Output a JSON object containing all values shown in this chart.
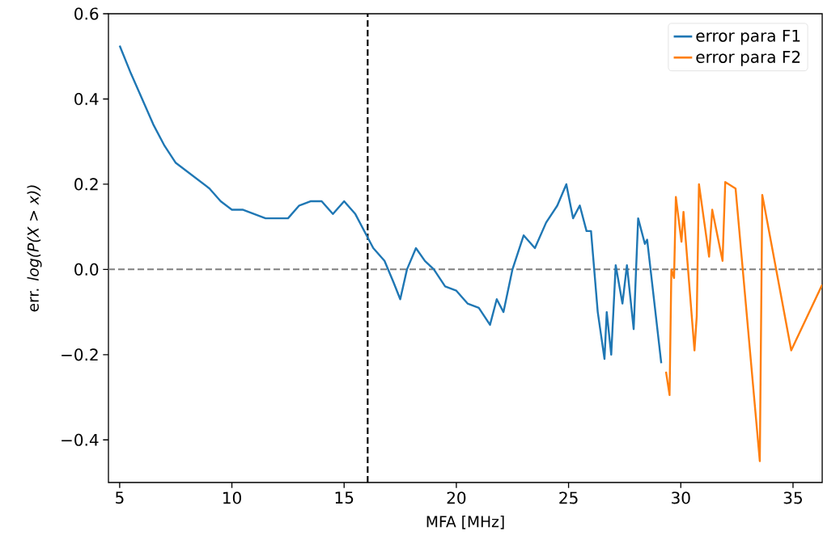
{
  "chart_data": {
    "type": "line",
    "xlabel": "MFA [MHz]",
    "ylabel": "err. *log(P(X > x))*",
    "xlim": [
      4.5,
      36.3
    ],
    "ylim": [
      -0.5,
      0.6
    ],
    "xticks": [
      5,
      10,
      15,
      20,
      25,
      30,
      35
    ],
    "yticks": [
      {
        "value": -0.4,
        "label": "−0.4"
      },
      {
        "value": -0.2,
        "label": "−0.2"
      },
      {
        "value": 0,
        "label": "0.0"
      },
      {
        "value": 0.2,
        "label": "0.2"
      },
      {
        "value": 0.4,
        "label": "0.4"
      },
      {
        "value": 0.6,
        "label": "0.6"
      }
    ],
    "legend": "top right",
    "grid": false,
    "ref_lines": [
      {
        "axis": "y",
        "value": 0,
        "color": "#808080",
        "line_style": "dashed"
      },
      {
        "axis": "x",
        "value": 16.05,
        "color": "#000000",
        "line_style": "dashed"
      }
    ],
    "series": [
      {
        "name": "error para F1",
        "color": "#1f77b4",
        "x": [
          5.0,
          5.5,
          6.0,
          6.5,
          7.0,
          7.5,
          8.0,
          8.5,
          9.0,
          9.5,
          10.0,
          10.5,
          11.0,
          11.5,
          12.0,
          12.5,
          13.0,
          13.5,
          14.0,
          14.5,
          15.0,
          15.5,
          16.0,
          16.3,
          16.8,
          17.2,
          17.5,
          17.8,
          18.2,
          18.6,
          19.0,
          19.5,
          20.0,
          20.5,
          21.0,
          21.5,
          21.8,
          22.1,
          22.5,
          23.0,
          23.5,
          24.0,
          24.5,
          24.9,
          25.2,
          25.5,
          25.8,
          26.0,
          26.3,
          26.6,
          26.7,
          26.9,
          27.1,
          27.4,
          27.6,
          27.9,
          28.1,
          28.4,
          28.5,
          29.13
        ],
        "values": [
          0.525,
          0.46,
          0.4,
          0.34,
          0.29,
          0.25,
          0.23,
          0.21,
          0.19,
          0.16,
          0.14,
          0.14,
          0.13,
          0.12,
          0.12,
          0.12,
          0.15,
          0.16,
          0.16,
          0.13,
          0.16,
          0.13,
          0.08,
          0.05,
          0.02,
          -0.03,
          -0.07,
          0.0,
          0.05,
          0.02,
          0.0,
          -0.04,
          -0.05,
          -0.08,
          -0.09,
          -0.13,
          -0.07,
          -0.1,
          0.0,
          0.08,
          0.05,
          0.11,
          0.15,
          0.2,
          0.12,
          0.15,
          0.09,
          0.09,
          -0.1,
          -0.21,
          -0.1,
          -0.2,
          0.01,
          -0.08,
          0.01,
          -0.14,
          0.12,
          0.06,
          0.07,
          -0.22
        ]
      },
      {
        "name": "error para F2",
        "color": "#ff7f0e",
        "x": [
          29.34,
          29.5,
          29.58,
          29.7,
          29.78,
          30.03,
          30.12,
          30.61,
          30.71,
          30.81,
          31.26,
          31.4,
          31.86,
          31.98,
          32.44,
          33.52,
          33.63,
          34.92,
          36.3
        ],
        "values": [
          -0.24,
          -0.295,
          0.0,
          -0.02,
          0.17,
          0.065,
          0.135,
          -0.19,
          -0.11,
          0.2,
          0.03,
          0.14,
          0.02,
          0.205,
          0.19,
          -0.45,
          0.175,
          -0.19,
          -0.036
        ]
      }
    ]
  }
}
